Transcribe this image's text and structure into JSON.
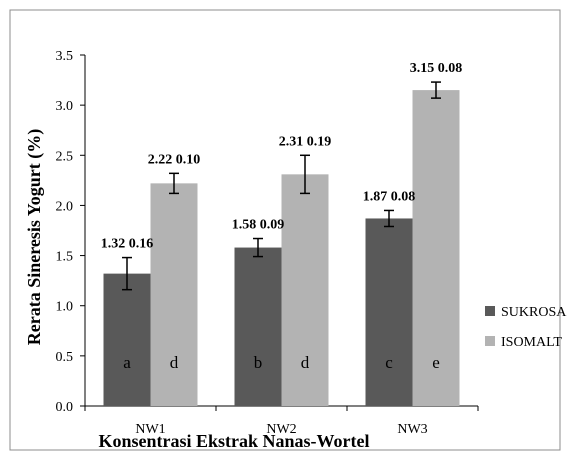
{
  "chart_data": {
    "type": "bar",
    "title": "",
    "xlabel": "Konsentrasi Ekstrak Nanas-Wortel",
    "ylabel": "Rerata Sineresis Yogurt (%)",
    "ylim": [
      0,
      3.5
    ],
    "ytick_step": 0.5,
    "ytick_labels": [
      "0.0",
      "0.5",
      "1.0",
      "1.5",
      "2.0",
      "2.5",
      "3.0",
      "3.5"
    ],
    "grid": false,
    "legend_position": "right",
    "categories": [
      "NW1",
      "NW2",
      "NW3"
    ],
    "series": [
      {
        "name": "SUKROSA",
        "color": "#595959",
        "values": [
          1.32,
          1.58,
          1.87
        ],
        "errors": [
          0.16,
          0.09,
          0.08
        ],
        "labels": [
          "1.32  0.16",
          "1.58  0.09",
          "1.87  0.08"
        ],
        "letters": [
          "a",
          "b",
          "c"
        ]
      },
      {
        "name": "ISOMALT",
        "color": "#b3b3b3",
        "values": [
          2.22,
          2.31,
          3.15
        ],
        "errors": [
          0.1,
          0.19,
          0.08
        ],
        "labels": [
          "2.22  0.10",
          "2.31  0.19",
          "3.15  0.08"
        ],
        "letters": [
          "d",
          "d",
          "e"
        ]
      }
    ]
  }
}
